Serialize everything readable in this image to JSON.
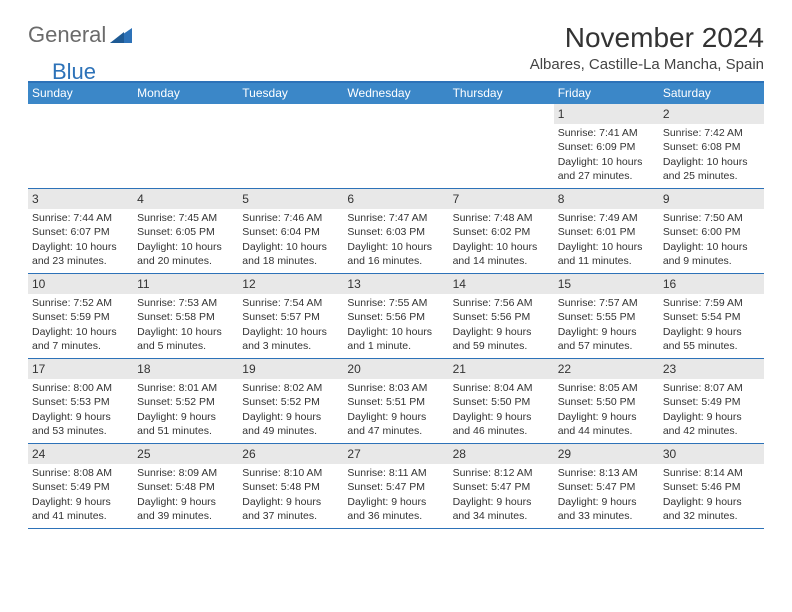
{
  "logo": {
    "word1": "General",
    "word2": "Blue"
  },
  "title": {
    "month": "November 2024",
    "location": "Albares, Castille-La Mancha, Spain"
  },
  "dow": [
    "Sunday",
    "Monday",
    "Tuesday",
    "Wednesday",
    "Thursday",
    "Friday",
    "Saturday"
  ],
  "colors": {
    "header_bar": "#3b87c8",
    "accent_line": "#2d72b8",
    "daynum_bg": "#e8e8e8",
    "text": "#333333",
    "logo_gray": "#6b6b6b"
  },
  "weeks": [
    [
      {
        "empty": true
      },
      {
        "empty": true
      },
      {
        "empty": true
      },
      {
        "empty": true
      },
      {
        "empty": true
      },
      {
        "n": "1",
        "sunrise": "Sunrise: 7:41 AM",
        "sunset": "Sunset: 6:09 PM",
        "dl1": "Daylight: 10 hours",
        "dl2": "and 27 minutes."
      },
      {
        "n": "2",
        "sunrise": "Sunrise: 7:42 AM",
        "sunset": "Sunset: 6:08 PM",
        "dl1": "Daylight: 10 hours",
        "dl2": "and 25 minutes."
      }
    ],
    [
      {
        "n": "3",
        "sunrise": "Sunrise: 7:44 AM",
        "sunset": "Sunset: 6:07 PM",
        "dl1": "Daylight: 10 hours",
        "dl2": "and 23 minutes."
      },
      {
        "n": "4",
        "sunrise": "Sunrise: 7:45 AM",
        "sunset": "Sunset: 6:05 PM",
        "dl1": "Daylight: 10 hours",
        "dl2": "and 20 minutes."
      },
      {
        "n": "5",
        "sunrise": "Sunrise: 7:46 AM",
        "sunset": "Sunset: 6:04 PM",
        "dl1": "Daylight: 10 hours",
        "dl2": "and 18 minutes."
      },
      {
        "n": "6",
        "sunrise": "Sunrise: 7:47 AM",
        "sunset": "Sunset: 6:03 PM",
        "dl1": "Daylight: 10 hours",
        "dl2": "and 16 minutes."
      },
      {
        "n": "7",
        "sunrise": "Sunrise: 7:48 AM",
        "sunset": "Sunset: 6:02 PM",
        "dl1": "Daylight: 10 hours",
        "dl2": "and 14 minutes."
      },
      {
        "n": "8",
        "sunrise": "Sunrise: 7:49 AM",
        "sunset": "Sunset: 6:01 PM",
        "dl1": "Daylight: 10 hours",
        "dl2": "and 11 minutes."
      },
      {
        "n": "9",
        "sunrise": "Sunrise: 7:50 AM",
        "sunset": "Sunset: 6:00 PM",
        "dl1": "Daylight: 10 hours",
        "dl2": "and 9 minutes."
      }
    ],
    [
      {
        "n": "10",
        "sunrise": "Sunrise: 7:52 AM",
        "sunset": "Sunset: 5:59 PM",
        "dl1": "Daylight: 10 hours",
        "dl2": "and 7 minutes."
      },
      {
        "n": "11",
        "sunrise": "Sunrise: 7:53 AM",
        "sunset": "Sunset: 5:58 PM",
        "dl1": "Daylight: 10 hours",
        "dl2": "and 5 minutes."
      },
      {
        "n": "12",
        "sunrise": "Sunrise: 7:54 AM",
        "sunset": "Sunset: 5:57 PM",
        "dl1": "Daylight: 10 hours",
        "dl2": "and 3 minutes."
      },
      {
        "n": "13",
        "sunrise": "Sunrise: 7:55 AM",
        "sunset": "Sunset: 5:56 PM",
        "dl1": "Daylight: 10 hours",
        "dl2": "and 1 minute."
      },
      {
        "n": "14",
        "sunrise": "Sunrise: 7:56 AM",
        "sunset": "Sunset: 5:56 PM",
        "dl1": "Daylight: 9 hours",
        "dl2": "and 59 minutes."
      },
      {
        "n": "15",
        "sunrise": "Sunrise: 7:57 AM",
        "sunset": "Sunset: 5:55 PM",
        "dl1": "Daylight: 9 hours",
        "dl2": "and 57 minutes."
      },
      {
        "n": "16",
        "sunrise": "Sunrise: 7:59 AM",
        "sunset": "Sunset: 5:54 PM",
        "dl1": "Daylight: 9 hours",
        "dl2": "and 55 minutes."
      }
    ],
    [
      {
        "n": "17",
        "sunrise": "Sunrise: 8:00 AM",
        "sunset": "Sunset: 5:53 PM",
        "dl1": "Daylight: 9 hours",
        "dl2": "and 53 minutes."
      },
      {
        "n": "18",
        "sunrise": "Sunrise: 8:01 AM",
        "sunset": "Sunset: 5:52 PM",
        "dl1": "Daylight: 9 hours",
        "dl2": "and 51 minutes."
      },
      {
        "n": "19",
        "sunrise": "Sunrise: 8:02 AM",
        "sunset": "Sunset: 5:52 PM",
        "dl1": "Daylight: 9 hours",
        "dl2": "and 49 minutes."
      },
      {
        "n": "20",
        "sunrise": "Sunrise: 8:03 AM",
        "sunset": "Sunset: 5:51 PM",
        "dl1": "Daylight: 9 hours",
        "dl2": "and 47 minutes."
      },
      {
        "n": "21",
        "sunrise": "Sunrise: 8:04 AM",
        "sunset": "Sunset: 5:50 PM",
        "dl1": "Daylight: 9 hours",
        "dl2": "and 46 minutes."
      },
      {
        "n": "22",
        "sunrise": "Sunrise: 8:05 AM",
        "sunset": "Sunset: 5:50 PM",
        "dl1": "Daylight: 9 hours",
        "dl2": "and 44 minutes."
      },
      {
        "n": "23",
        "sunrise": "Sunrise: 8:07 AM",
        "sunset": "Sunset: 5:49 PM",
        "dl1": "Daylight: 9 hours",
        "dl2": "and 42 minutes."
      }
    ],
    [
      {
        "n": "24",
        "sunrise": "Sunrise: 8:08 AM",
        "sunset": "Sunset: 5:49 PM",
        "dl1": "Daylight: 9 hours",
        "dl2": "and 41 minutes."
      },
      {
        "n": "25",
        "sunrise": "Sunrise: 8:09 AM",
        "sunset": "Sunset: 5:48 PM",
        "dl1": "Daylight: 9 hours",
        "dl2": "and 39 minutes."
      },
      {
        "n": "26",
        "sunrise": "Sunrise: 8:10 AM",
        "sunset": "Sunset: 5:48 PM",
        "dl1": "Daylight: 9 hours",
        "dl2": "and 37 minutes."
      },
      {
        "n": "27",
        "sunrise": "Sunrise: 8:11 AM",
        "sunset": "Sunset: 5:47 PM",
        "dl1": "Daylight: 9 hours",
        "dl2": "and 36 minutes."
      },
      {
        "n": "28",
        "sunrise": "Sunrise: 8:12 AM",
        "sunset": "Sunset: 5:47 PM",
        "dl1": "Daylight: 9 hours",
        "dl2": "and 34 minutes."
      },
      {
        "n": "29",
        "sunrise": "Sunrise: 8:13 AM",
        "sunset": "Sunset: 5:47 PM",
        "dl1": "Daylight: 9 hours",
        "dl2": "and 33 minutes."
      },
      {
        "n": "30",
        "sunrise": "Sunrise: 8:14 AM",
        "sunset": "Sunset: 5:46 PM",
        "dl1": "Daylight: 9 hours",
        "dl2": "and 32 minutes."
      }
    ]
  ]
}
